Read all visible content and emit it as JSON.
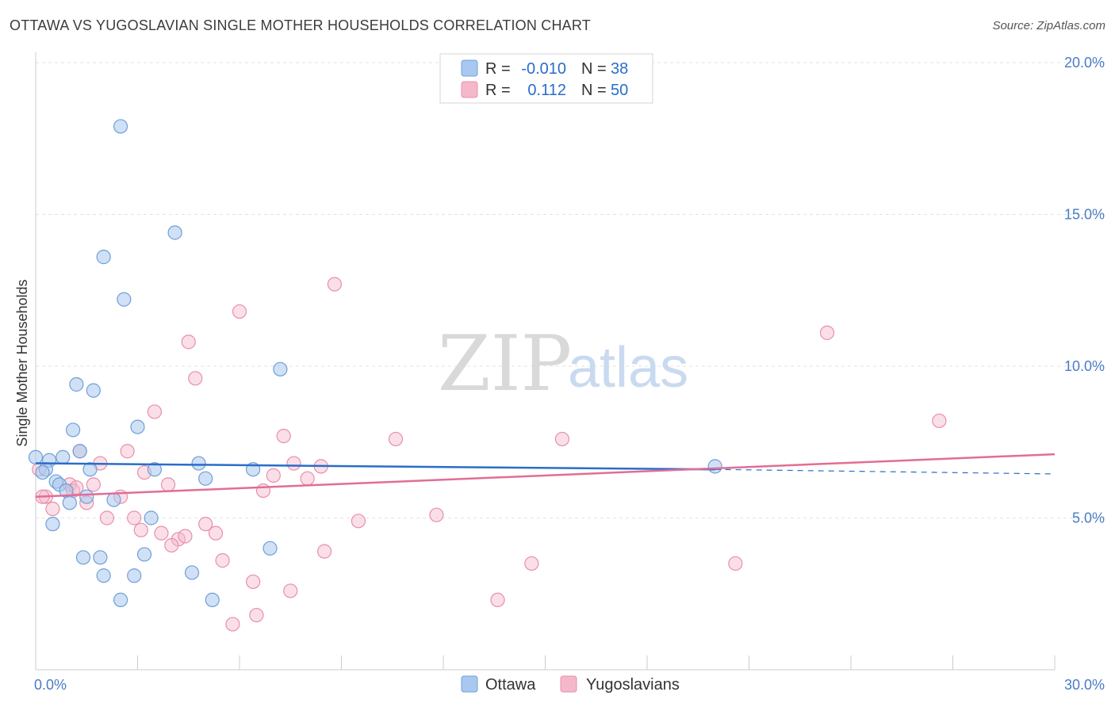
{
  "title": "OTTAWA VS YUGOSLAVIAN SINGLE MOTHER HOUSEHOLDS CORRELATION CHART",
  "source": "Source: ZipAtlas.com",
  "watermark": {
    "zip": "ZIP",
    "atlas": "atlas"
  },
  "colors": {
    "ottawa_fill": "#a9c8ef",
    "ottawa_stroke": "#6f9fd8",
    "ottawa_line": "#2a6dc9",
    "yugo_fill": "#f5b8cb",
    "yugo_stroke": "#e88fab",
    "yugo_line": "#e26d96",
    "grid": "#e3e3e3",
    "tick_text": "#4a7bc4"
  },
  "legend": {
    "rows": [
      {
        "r_label": "R =",
        "r_value": "-0.010",
        "n_label": "N =",
        "n_value": "38"
      },
      {
        "r_label": "R =",
        "r_value": "0.112",
        "n_label": "N =",
        "n_value": "50"
      }
    ]
  },
  "bottom_legend": [
    "Ottawa",
    "Yugoslavians"
  ],
  "chart_data": {
    "type": "scatter",
    "title": "OTTAWA VS YUGOSLAVIAN SINGLE MOTHER HOUSEHOLDS CORRELATION CHART",
    "xlabel": "",
    "ylabel": "Single Mother Households",
    "xlim": [
      0,
      30
    ],
    "ylim": [
      0,
      20
    ],
    "x_tick_labels": [
      "0.0%",
      "30.0%"
    ],
    "y_ticks": [
      5,
      10,
      15,
      20
    ],
    "y_tick_labels": [
      "5.0%",
      "10.0%",
      "15.0%",
      "20.0%"
    ],
    "grid": true,
    "series": [
      {
        "name": "Ottawa",
        "r": -0.01,
        "n": 38,
        "trend": {
          "x": [
            0,
            20
          ],
          "y": [
            6.8,
            6.6
          ],
          "dashed_to": [
            30,
            6.45
          ]
        },
        "points": [
          [
            2.5,
            17.9
          ],
          [
            4.1,
            14.4
          ],
          [
            2.0,
            13.6
          ],
          [
            2.6,
            12.2
          ],
          [
            7.2,
            9.9
          ],
          [
            1.2,
            9.4
          ],
          [
            1.7,
            9.2
          ],
          [
            3.0,
            8.0
          ],
          [
            1.1,
            7.9
          ],
          [
            1.3,
            7.2
          ],
          [
            0.0,
            7.0
          ],
          [
            0.4,
            6.9
          ],
          [
            0.8,
            7.0
          ],
          [
            4.8,
            6.8
          ],
          [
            3.5,
            6.6
          ],
          [
            6.4,
            6.6
          ],
          [
            0.3,
            6.6
          ],
          [
            1.6,
            6.6
          ],
          [
            5.0,
            6.3
          ],
          [
            0.6,
            6.2
          ],
          [
            0.7,
            6.1
          ],
          [
            0.9,
            5.9
          ],
          [
            1.5,
            5.7
          ],
          [
            2.3,
            5.6
          ],
          [
            1.0,
            5.5
          ],
          [
            3.4,
            5.0
          ],
          [
            0.5,
            4.8
          ],
          [
            6.9,
            4.0
          ],
          [
            3.2,
            3.8
          ],
          [
            1.4,
            3.7
          ],
          [
            1.9,
            3.7
          ],
          [
            2.0,
            3.1
          ],
          [
            2.9,
            3.1
          ],
          [
            4.6,
            3.2
          ],
          [
            2.5,
            2.3
          ],
          [
            5.2,
            2.3
          ],
          [
            20.0,
            6.7
          ],
          [
            0.2,
            6.5
          ]
        ]
      },
      {
        "name": "Yugoslavians",
        "r": 0.112,
        "n": 50,
        "trend": {
          "x": [
            0,
            30
          ],
          "y": [
            5.7,
            7.1
          ]
        },
        "points": [
          [
            8.8,
            12.7
          ],
          [
            6.0,
            11.8
          ],
          [
            4.5,
            10.8
          ],
          [
            4.7,
            9.6
          ],
          [
            3.5,
            8.5
          ],
          [
            7.3,
            7.7
          ],
          [
            10.6,
            7.6
          ],
          [
            15.5,
            7.6
          ],
          [
            26.6,
            8.2
          ],
          [
            23.3,
            11.1
          ],
          [
            1.3,
            7.2
          ],
          [
            2.7,
            7.2
          ],
          [
            1.9,
            6.8
          ],
          [
            7.6,
            6.8
          ],
          [
            8.4,
            6.7
          ],
          [
            3.2,
            6.5
          ],
          [
            7.0,
            6.4
          ],
          [
            8.0,
            6.3
          ],
          [
            1.7,
            6.1
          ],
          [
            1.0,
            6.1
          ],
          [
            3.9,
            6.1
          ],
          [
            6.7,
            5.9
          ],
          [
            0.3,
            5.7
          ],
          [
            2.5,
            5.7
          ],
          [
            1.5,
            5.5
          ],
          [
            0.5,
            5.3
          ],
          [
            2.1,
            5.0
          ],
          [
            2.9,
            5.0
          ],
          [
            9.5,
            4.9
          ],
          [
            11.8,
            5.1
          ],
          [
            5.0,
            4.8
          ],
          [
            3.1,
            4.6
          ],
          [
            3.7,
            4.5
          ],
          [
            5.3,
            4.5
          ],
          [
            4.2,
            4.3
          ],
          [
            4.4,
            4.4
          ],
          [
            4.0,
            4.1
          ],
          [
            8.5,
            3.9
          ],
          [
            5.5,
            3.6
          ],
          [
            14.6,
            3.5
          ],
          [
            20.6,
            3.5
          ],
          [
            6.4,
            2.9
          ],
          [
            7.5,
            2.6
          ],
          [
            13.6,
            2.3
          ],
          [
            6.5,
            1.8
          ],
          [
            5.8,
            1.5
          ],
          [
            0.1,
            6.6
          ],
          [
            0.2,
            5.7
          ],
          [
            1.1,
            5.9
          ],
          [
            1.2,
            6.0
          ]
        ]
      }
    ]
  }
}
